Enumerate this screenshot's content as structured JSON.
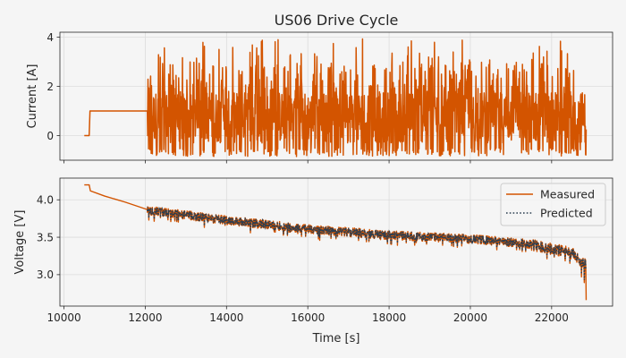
{
  "chart_data": [
    {
      "type": "line",
      "title": "US06 Drive Cycle",
      "xlabel": "",
      "ylabel": "Current [A]",
      "xlim": [
        9900,
        23500
      ],
      "ylim": [
        -1.0,
        4.2
      ],
      "grid": true,
      "x_ticks": [
        10000,
        12000,
        14000,
        16000,
        18000,
        20000,
        22000
      ],
      "x_tick_labels_shown": false,
      "y_ticks": [
        0,
        2,
        4
      ],
      "y_tick_labels": [
        "0",
        "2",
        "4"
      ],
      "series": [
        {
          "name": "",
          "color": "#d35400",
          "style": "solid",
          "segments": [
            {
              "x": [
                10500,
                10620,
                10640,
                12050,
                12060
              ],
              "y": [
                0.0,
                0.0,
                1.0,
                1.0,
                0.0
              ]
            },
            {
              "x_range": [
                12060,
                22850
              ],
              "pattern": "US06 repeated pulses",
              "y_min": -0.85,
              "y_max": 3.95,
              "y_typical_high": 2.0,
              "y_typical_low": -0.2
            }
          ]
        }
      ]
    },
    {
      "type": "line",
      "title": "",
      "xlabel": "Time [s]",
      "ylabel": "Voltage [V]",
      "xlim": [
        9900,
        23500
      ],
      "ylim": [
        2.58,
        4.29
      ],
      "grid": true,
      "x_ticks": [
        10000,
        12000,
        14000,
        16000,
        18000,
        20000,
        22000
      ],
      "x_tick_labels": [
        "10000",
        "12000",
        "14000",
        "16000",
        "18000",
        "20000",
        "22000"
      ],
      "y_ticks": [
        3.0,
        3.5,
        4.0
      ],
      "y_tick_labels": [
        "3.0",
        "3.5",
        "4.0"
      ],
      "legend": {
        "placement": "top-right",
        "entries": [
          "Measured",
          "Predicted"
        ]
      },
      "series": [
        {
          "name": "Measured",
          "color": "#d35400",
          "style": "solid",
          "points": [
            [
              10500,
              4.2
            ],
            [
              10620,
              4.2
            ],
            [
              10650,
              4.12
            ],
            [
              11000,
              4.05
            ],
            [
              11500,
              3.97
            ],
            [
              12050,
              3.87
            ],
            [
              14000,
              3.74
            ],
            [
              16000,
              3.62
            ],
            [
              18000,
              3.54
            ],
            [
              20000,
              3.49
            ],
            [
              21500,
              3.42
            ],
            [
              22500,
              3.3
            ],
            [
              22850,
              3.15
            ]
          ],
          "ripple_min": 2.66,
          "ripple_max": 4.0
        },
        {
          "name": "Predicted",
          "color": "#2c3e50",
          "style": "dotted",
          "points": [
            [
              12050,
              3.87
            ],
            [
              14000,
              3.74
            ],
            [
              16000,
              3.62
            ],
            [
              18000,
              3.54
            ],
            [
              20000,
              3.49
            ],
            [
              21500,
              3.42
            ],
            [
              22500,
              3.3
            ],
            [
              22850,
              3.15
            ]
          ]
        }
      ]
    }
  ]
}
